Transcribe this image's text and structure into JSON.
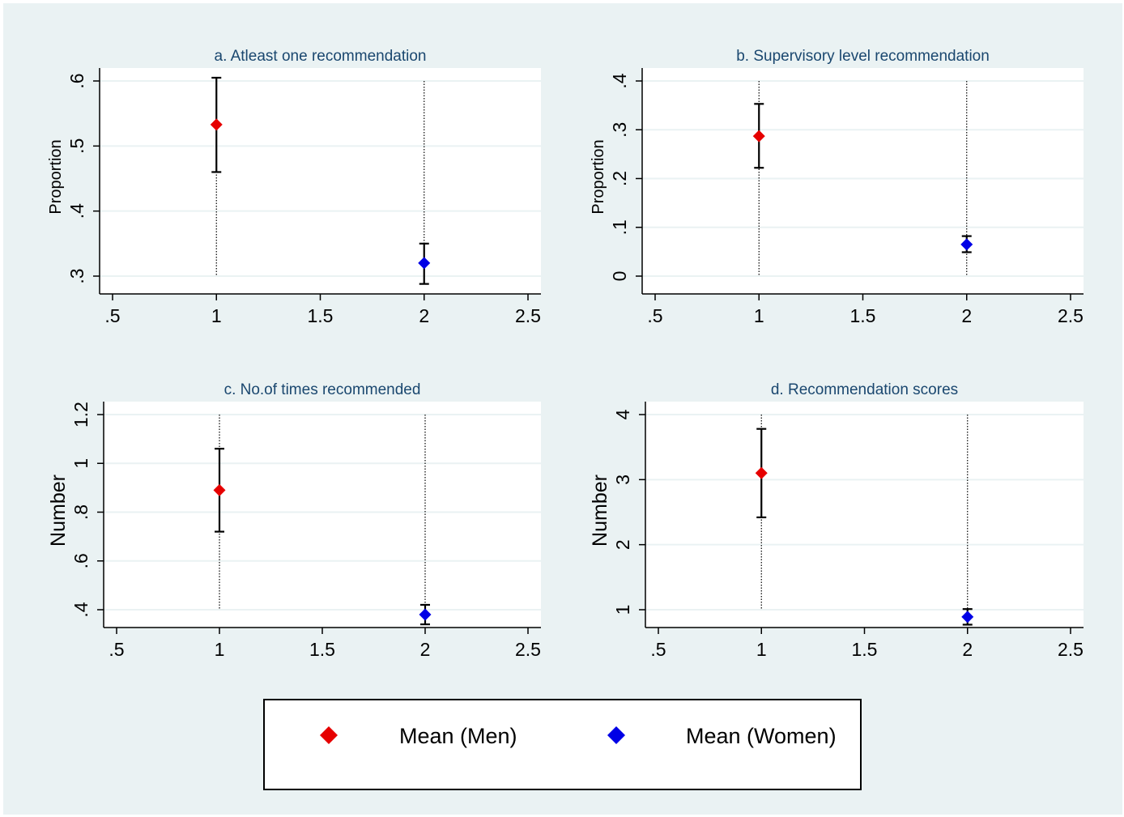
{
  "colors": {
    "men": "#e60000",
    "women": "#0000e6",
    "background": "#eaf2f3",
    "plot_region": "#ffffff",
    "title": "#1a476f",
    "gridline": "#eaf2f3"
  },
  "chart_data": [
    {
      "type": "scatter",
      "title": "a. Atleast one recommendation",
      "xlabel": "",
      "ylabel": "Proportion",
      "xlim": [
        0.5,
        2.5
      ],
      "xticks": [
        ".5",
        "1",
        "1.5",
        "2",
        "2.5"
      ],
      "ylim": [
        0.3,
        0.6
      ],
      "yticks": [
        ".3",
        ".4",
        ".5",
        ".6"
      ],
      "grid": true,
      "series": [
        {
          "name": "Mean (Men)",
          "x": [
            1
          ],
          "y": [
            0.533
          ],
          "ci_low": [
            0.46
          ],
          "ci_high": [
            0.605
          ]
        },
        {
          "name": "Mean (Women)",
          "x": [
            2
          ],
          "y": [
            0.32
          ],
          "ci_low": [
            0.288
          ],
          "ci_high": [
            0.35
          ]
        }
      ]
    },
    {
      "type": "scatter",
      "title": "b. Supervisory level recommendation",
      "xlabel": "",
      "ylabel": "Proportion",
      "xlim": [
        0.5,
        2.5
      ],
      "xticks": [
        ".5",
        "1",
        "1.5",
        "2",
        "2.5"
      ],
      "ylim": [
        0,
        0.4
      ],
      "yticks": [
        "0",
        ".1",
        ".2",
        ".3",
        ".4"
      ],
      "grid": true,
      "series": [
        {
          "name": "Mean (Men)",
          "x": [
            1
          ],
          "y": [
            0.287
          ],
          "ci_low": [
            0.222
          ],
          "ci_high": [
            0.353
          ]
        },
        {
          "name": "Mean (Women)",
          "x": [
            2
          ],
          "y": [
            0.065
          ],
          "ci_low": [
            0.049
          ],
          "ci_high": [
            0.082
          ]
        }
      ]
    },
    {
      "type": "scatter",
      "title": "c. No.of times recommended",
      "xlabel": "",
      "ylabel": "Number",
      "xlim": [
        0.5,
        2.5
      ],
      "xticks": [
        ".5",
        "1",
        "1.5",
        "2",
        "2.5"
      ],
      "ylim": [
        0.4,
        1.2
      ],
      "yticks": [
        ".4",
        ".6",
        ".8",
        "1",
        "1.2"
      ],
      "grid": true,
      "series": [
        {
          "name": "Mean (Men)",
          "x": [
            1
          ],
          "y": [
            0.89
          ],
          "ci_low": [
            0.72
          ],
          "ci_high": [
            1.06
          ]
        },
        {
          "name": "Mean (Women)",
          "x": [
            2
          ],
          "y": [
            0.38
          ],
          "ci_low": [
            0.34
          ],
          "ci_high": [
            0.42
          ]
        }
      ]
    },
    {
      "type": "scatter",
      "title": "d. Recommendation scores",
      "xlabel": "",
      "ylabel": "Number",
      "xlim": [
        0.5,
        2.5
      ],
      "xticks": [
        ".5",
        "1",
        "1.5",
        "2",
        "2.5"
      ],
      "ylim": [
        1,
        4
      ],
      "yticks": [
        "1",
        "2",
        "3",
        "4"
      ],
      "grid": true,
      "series": [
        {
          "name": "Mean (Men)",
          "x": [
            1
          ],
          "y": [
            3.1
          ],
          "ci_low": [
            2.42
          ],
          "ci_high": [
            3.78
          ]
        },
        {
          "name": "Mean (Women)",
          "x": [
            2
          ],
          "y": [
            0.89
          ],
          "ci_low": [
            0.77
          ],
          "ci_high": [
            1.01
          ]
        }
      ]
    }
  ],
  "legend": {
    "placement": "bottom",
    "items": [
      {
        "label": "Mean (Men)",
        "color": "#e60000"
      },
      {
        "label": "Mean (Women)",
        "color": "#0000e6"
      }
    ]
  }
}
